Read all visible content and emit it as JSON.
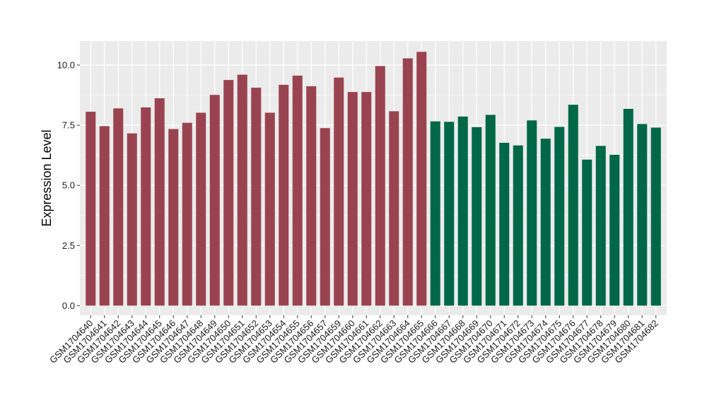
{
  "chart_data": {
    "type": "bar",
    "title": "",
    "xlabel": "",
    "ylabel": "Expression Level",
    "ylim": [
      -0.4,
      11.0
    ],
    "yticks": [
      0.0,
      2.5,
      5.0,
      7.5,
      10.0
    ],
    "ytick_labels": [
      "0.0",
      "2.5",
      "5.0",
      "7.5",
      "10.0"
    ],
    "grid": true,
    "legend": "none",
    "colors": {
      "group_a": "#9a4350",
      "group_b": "#006846",
      "panel_bg": "#ebebeb",
      "grid": "#ffffff"
    },
    "categories": [
      "GSM1704640",
      "GSM1704641",
      "GSM1704642",
      "GSM1704643",
      "GSM1704644",
      "GSM1704645",
      "GSM1704646",
      "GSM1704647",
      "GSM1704648",
      "GSM1704649",
      "GSM1704650",
      "GSM1704651",
      "GSM1704652",
      "GSM1704653",
      "GSM1704654",
      "GSM1704655",
      "GSM1704656",
      "GSM1704657",
      "GSM1704659",
      "GSM1704660",
      "GSM1704661",
      "GSM1704662",
      "GSM1704663",
      "GSM1704664",
      "GSM1704665",
      "GSM1704666",
      "GSM1704667",
      "GSM1704668",
      "GSM1704669",
      "GSM1704670",
      "GSM1704671",
      "GSM1704672",
      "GSM1704673",
      "GSM1704674",
      "GSM1704675",
      "GSM1704676",
      "GSM1704677",
      "GSM1704678",
      "GSM1704679",
      "GSM1704680",
      "GSM1704681",
      "GSM1704682"
    ],
    "values": [
      8.06,
      7.46,
      8.2,
      7.16,
      8.24,
      8.62,
      7.34,
      7.6,
      8.02,
      8.76,
      9.38,
      9.6,
      9.06,
      8.02,
      9.18,
      9.56,
      9.12,
      7.38,
      9.48,
      8.88,
      8.88,
      9.96,
      8.08,
      10.28,
      10.55,
      7.66,
      7.64,
      7.86,
      7.42,
      7.93,
      6.77,
      6.66,
      7.7,
      6.94,
      7.43,
      8.35,
      6.07,
      6.64,
      6.27,
      8.18,
      7.55,
      7.4
    ],
    "bar_groups": [
      "a",
      "a",
      "a",
      "a",
      "a",
      "a",
      "a",
      "a",
      "a",
      "a",
      "a",
      "a",
      "a",
      "a",
      "a",
      "a",
      "a",
      "a",
      "a",
      "a",
      "a",
      "a",
      "a",
      "a",
      "a",
      "b",
      "b",
      "b",
      "b",
      "b",
      "b",
      "b",
      "b",
      "b",
      "b",
      "b",
      "b",
      "b",
      "b",
      "b",
      "b",
      "b"
    ]
  }
}
